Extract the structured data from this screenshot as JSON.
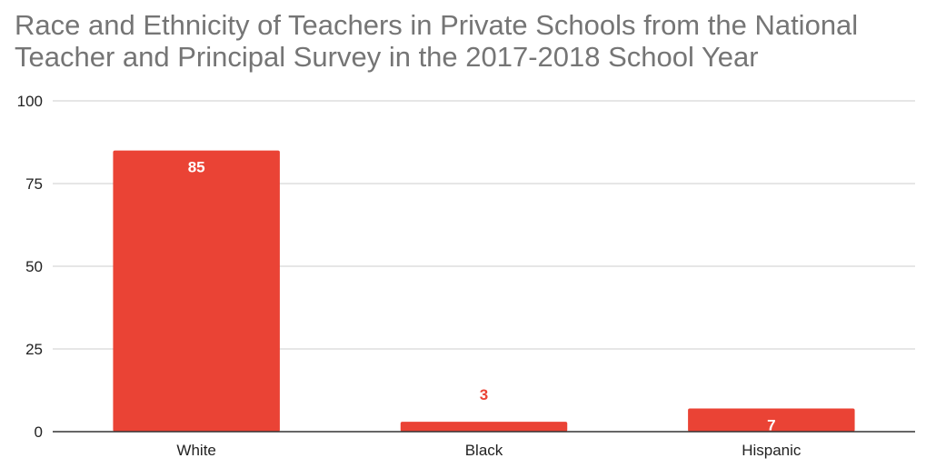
{
  "chart_data": {
    "type": "bar",
    "title_lines": [
      "Race and Ethnicity of Teachers in Private Schools from the National",
      "Teacher and Principal Survey in the 2017-2018 School Year"
    ],
    "categories": [
      "White",
      "Black",
      "Hispanic"
    ],
    "values": [
      85,
      3,
      7
    ],
    "data_labels": [
      "85",
      "3",
      "7"
    ],
    "ylim": [
      0,
      100
    ],
    "yticks": [
      0,
      25,
      50,
      75,
      100
    ],
    "ytick_labels": [
      "0",
      "25",
      "50",
      "75",
      "100"
    ],
    "xlabel": "",
    "ylabel": "",
    "grid": true,
    "legend": "none",
    "bar_color": "#ea4335",
    "label_inside_color": "#ffffff",
    "label_outside_color": "#ea4335"
  }
}
